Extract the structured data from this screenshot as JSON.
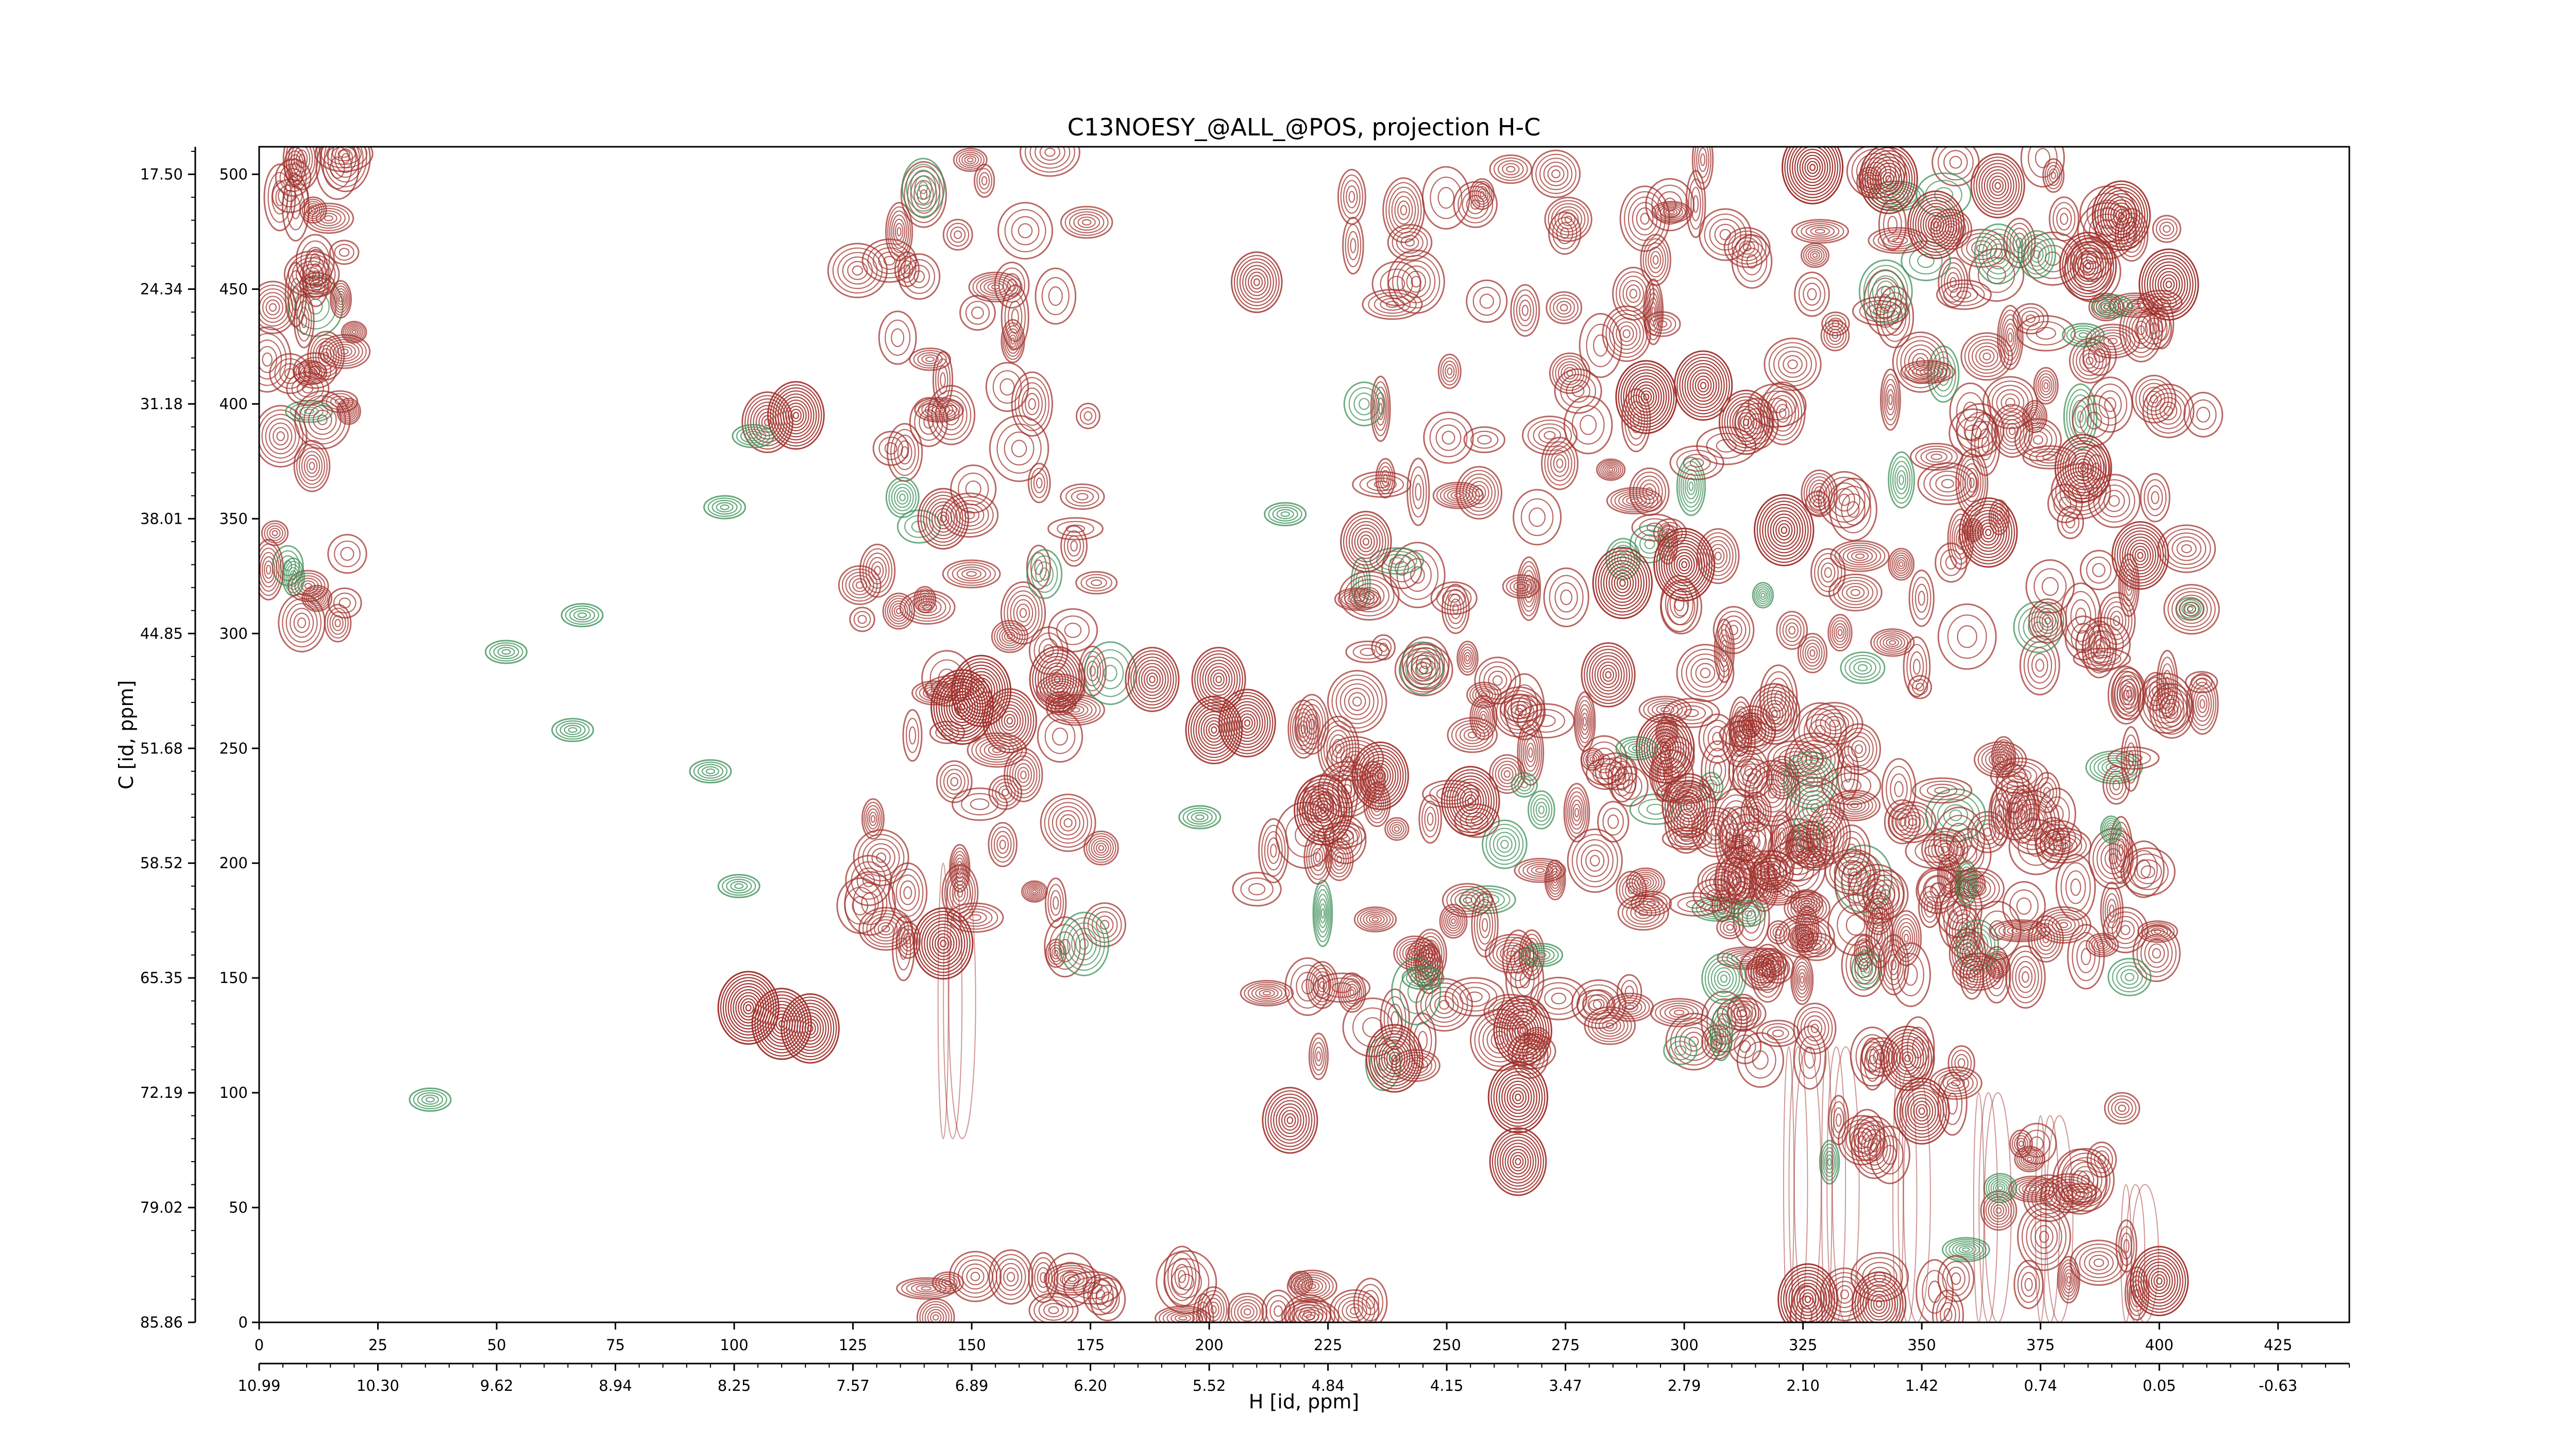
{
  "chart_data": {
    "type": "contour",
    "title": "C13NOESY_@ALL_@POS, projection H-C",
    "xlabel": "H [id, ppm]",
    "ylabel": "C [id, ppm]",
    "x_index_range": [
      0,
      440
    ],
    "y_index_range": [
      0,
      512
    ],
    "x_index_ticks": [
      0,
      25,
      50,
      75,
      100,
      125,
      150,
      175,
      200,
      225,
      250,
      275,
      300,
      325,
      350,
      375,
      400,
      425
    ],
    "x_ppm_ticks": [
      "10.99",
      "10.30",
      "9.62",
      "8.94",
      "8.25",
      "7.57",
      "6.89",
      "6.20",
      "5.52",
      "4.84",
      "4.15",
      "3.47",
      "2.79",
      "2.10",
      "1.42",
      "0.74",
      "0.05",
      "-0.63"
    ],
    "y_index_ticks": [
      0,
      50,
      100,
      150,
      200,
      250,
      300,
      350,
      400,
      450,
      500
    ],
    "y_ppm_ticks": [
      "85.86",
      "79.02",
      "72.19",
      "65.35",
      "58.52",
      "51.68",
      "44.85",
      "38.01",
      "31.18",
      "24.34",
      "17.50"
    ],
    "series": [
      {
        "sign": "positive",
        "color": "#a0302b"
      },
      {
        "sign": "negative",
        "color": "#3a8f55"
      }
    ],
    "peaks": [
      {
        "x": 148,
        "y": 268,
        "h": 1.0
      },
      {
        "x": 152,
        "y": 275,
        "h": 0.9
      },
      {
        "x": 158,
        "y": 262,
        "h": 0.7
      },
      {
        "x": 144,
        "y": 165,
        "h": 0.9
      },
      {
        "x": 103,
        "y": 137,
        "h": 0.95
      },
      {
        "x": 110,
        "y": 130,
        "h": 0.9
      },
      {
        "x": 116,
        "y": 128,
        "h": 0.85
      },
      {
        "x": 113,
        "y": 395,
        "h": 0.8
      },
      {
        "x": 107,
        "y": 392,
        "h": 0.6
      },
      {
        "x": 188,
        "y": 280,
        "h": 0.7
      },
      {
        "x": 202,
        "y": 280,
        "h": 0.7
      },
      {
        "x": 201,
        "y": 258,
        "h": 0.8
      },
      {
        "x": 300,
        "y": 330,
        "h": 0.95
      },
      {
        "x": 287,
        "y": 322,
        "h": 0.9
      },
      {
        "x": 292,
        "y": 403,
        "h": 0.95
      },
      {
        "x": 304,
        "y": 408,
        "h": 0.85
      },
      {
        "x": 313,
        "y": 392,
        "h": 0.7
      },
      {
        "x": 321,
        "y": 345,
        "h": 0.9
      },
      {
        "x": 327,
        "y": 503,
        "h": 0.95
      },
      {
        "x": 343,
        "y": 498,
        "h": 0.85
      },
      {
        "x": 353,
        "y": 478,
        "h": 0.8
      },
      {
        "x": 385,
        "y": 460,
        "h": 0.8
      },
      {
        "x": 392,
        "y": 482,
        "h": 0.85
      },
      {
        "x": 402,
        "y": 452,
        "h": 0.9
      },
      {
        "x": 384,
        "y": 372,
        "h": 0.8
      },
      {
        "x": 364,
        "y": 344,
        "h": 0.85
      },
      {
        "x": 396,
        "y": 334,
        "h": 0.8
      },
      {
        "x": 255,
        "y": 227,
        "h": 0.85
      },
      {
        "x": 236,
        "y": 238,
        "h": 0.8
      },
      {
        "x": 224,
        "y": 223,
        "h": 0.85
      },
      {
        "x": 239,
        "y": 115,
        "h": 0.8
      },
      {
        "x": 266,
        "y": 127,
        "h": 0.85
      },
      {
        "x": 265,
        "y": 98,
        "h": 0.9
      },
      {
        "x": 265,
        "y": 70,
        "h": 0.8
      },
      {
        "x": 217,
        "y": 88,
        "h": 0.75
      },
      {
        "x": 208,
        "y": 261,
        "h": 0.8
      },
      {
        "x": 296,
        "y": 250,
        "h": 0.85
      },
      {
        "x": 301,
        "y": 225,
        "h": 0.7
      },
      {
        "x": 347,
        "y": 115,
        "h": 0.7
      },
      {
        "x": 350,
        "y": 92,
        "h": 0.75
      },
      {
        "x": 400,
        "y": 18,
        "h": 0.85
      },
      {
        "x": 326,
        "y": 10,
        "h": 0.9
      },
      {
        "x": 341,
        "y": 8,
        "h": 0.7
      },
      {
        "x": 168,
        "y": 280,
        "h": 0.75
      },
      {
        "x": 144,
        "y": 350,
        "h": 0.6
      },
      {
        "x": 284,
        "y": 282,
        "h": 0.7
      },
      {
        "x": 319,
        "y": 265,
        "h": 0.6
      },
      {
        "x": 233,
        "y": 340,
        "h": 0.6
      },
      {
        "x": 366,
        "y": 495,
        "h": 0.7
      },
      {
        "x": 210,
        "y": 453,
        "h": 0.6
      }
    ]
  }
}
